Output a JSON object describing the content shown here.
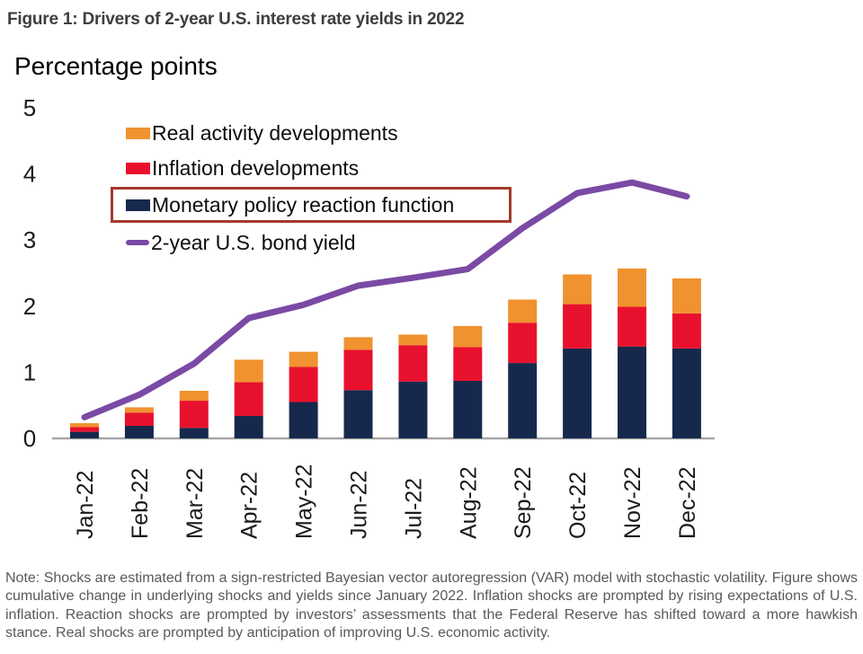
{
  "figure": {
    "title": "Figure 1: Drivers of 2-year U.S. interest rate yields in 2022"
  },
  "chart_data": {
    "type": "bar",
    "subtype": "stacked-bar-with-line",
    "title": "Figure 1: Drivers of 2-year U.S. interest rate yields in 2022",
    "axis_title": "Percentage points",
    "xlabel": "",
    "ylabel": "Percentage points",
    "ylim": [
      0,
      5
    ],
    "yticks": [
      5,
      4,
      3,
      2,
      1,
      0
    ],
    "grid": false,
    "legend_position": "top-left-inside",
    "categories": [
      "Jan-22",
      "Feb-22",
      "Mar-22",
      "Apr-22",
      "May-22",
      "Jun-22",
      "Jul-22",
      "Aug-22",
      "Sep-22",
      "Oct-22",
      "Nov-22",
      "Dec-22"
    ],
    "series": [
      {
        "name": "Monetary policy reaction function",
        "type": "bar",
        "stack_order": 1,
        "color": "#16294d",
        "values": [
          0.1,
          0.19,
          0.16,
          0.34,
          0.55,
          0.73,
          0.86,
          0.87,
          1.14,
          1.36,
          1.39,
          1.36
        ]
      },
      {
        "name": "Inflation developments",
        "type": "bar",
        "stack_order": 2,
        "color": "#e8112d",
        "values": [
          0.07,
          0.2,
          0.41,
          0.51,
          0.53,
          0.61,
          0.55,
          0.51,
          0.61,
          0.67,
          0.6,
          0.53
        ]
      },
      {
        "name": "Real activity developments",
        "type": "bar",
        "stack_order": 3,
        "color": "#f0922f",
        "values": [
          0.06,
          0.08,
          0.15,
          0.34,
          0.23,
          0.19,
          0.16,
          0.32,
          0.35,
          0.45,
          0.58,
          0.53
        ]
      },
      {
        "name": "2-year U.S. bond yield",
        "type": "line",
        "color": "#7a4aa5",
        "values": [
          0.32,
          0.66,
          1.13,
          1.82,
          2.02,
          2.31,
          2.43,
          2.56,
          3.18,
          3.71,
          3.87,
          3.66
        ]
      }
    ],
    "annotations": [
      "Legend entry 'Monetary policy reaction function' is highlighted with a dark-red rectangular outline"
    ]
  },
  "legend": {
    "items": [
      {
        "label": "Real activity developments",
        "color": "#f0922f",
        "boxed": false,
        "swatch": "rect"
      },
      {
        "label": "Inflation developments",
        "color": "#e8112d",
        "boxed": false,
        "swatch": "rect"
      },
      {
        "label": "Monetary policy reaction function",
        "color": "#16294d",
        "boxed": true,
        "swatch": "rect"
      },
      {
        "label": "2-year U.S. bond yield",
        "color": "#7a4aa5",
        "boxed": false,
        "swatch": "line"
      }
    ],
    "highlight_box_color": "#a33a2b"
  },
  "note": {
    "text": "Note: Shocks are estimated from a sign-restricted Bayesian vector autoregression (VAR) model with stochastic volatility. Figure shows cumulative change in underlying shocks and yields since January 2022. Inflation shocks are prompted by rising expectations of U.S. inflation. Reaction shocks are prompted by investors’ assessments that the Federal Reserve has shifted toward a more hawkish stance. Real shocks are prompted by anticipation of improving U.S. economic activity."
  },
  "colors": {
    "background": "#ffffff",
    "title_text": "#3e3d3f",
    "note_text": "#595959",
    "axis_text": "#1a1a1a",
    "baseline": "#a6a6a6",
    "bar_monetary": "#16294d",
    "bar_inflation": "#e8112d",
    "bar_real_activity": "#f0922f",
    "yield_line": "#7a4aa5",
    "legend_highlight_box": "#a33a2b"
  }
}
